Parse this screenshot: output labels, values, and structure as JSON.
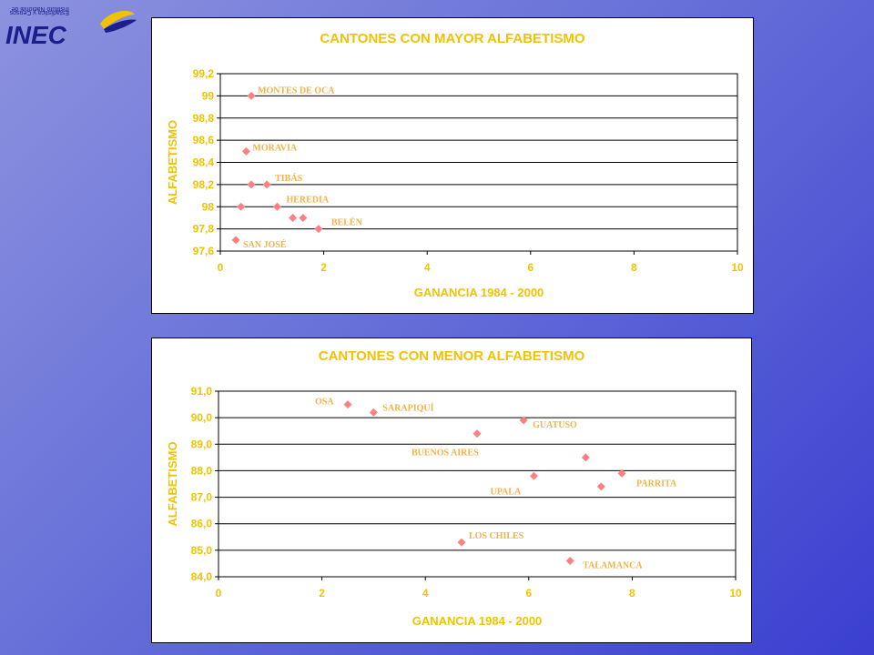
{
  "logo": {
    "text": "INEC",
    "tagline_line1": "Instituto Nacional de",
    "tagline_line2": "Estadística y Censos",
    "colors": {
      "text": "#1a1f8c",
      "accent": "#f2c200"
    }
  },
  "colors": {
    "panel_bg": "#ffffff",
    "title_text": "#f2c200",
    "marker": "#ff8080",
    "point_label": "#f2b34a",
    "grid": "#000000",
    "tick_text": "#f2c200"
  },
  "chart_data": [
    {
      "type": "scatter",
      "title": "CANTONES CON MAYOR ALFABETISMO",
      "xlabel": "GANANCIA 1984 - 2000",
      "ylabel": "ALFABETISMO",
      "xlim": [
        0,
        10
      ],
      "ylim": [
        97.6,
        99.2
      ],
      "xticks": [
        0,
        2,
        4,
        6,
        8,
        10
      ],
      "xtick_labels": [
        "0",
        "2",
        "4",
        "6",
        "8",
        "10"
      ],
      "yticks": [
        97.6,
        97.8,
        98.0,
        98.2,
        98.4,
        98.6,
        98.8,
        99.0,
        99.2
      ],
      "ytick_labels": [
        "97,6",
        "97,8",
        "98",
        "98,2",
        "98,4",
        "98,6",
        "98,8",
        "99",
        "99,2"
      ],
      "grid": "horizontal",
      "points": [
        {
          "x": 0.6,
          "y": 99.0,
          "label": "MONTES DE OCA"
        },
        {
          "x": 0.5,
          "y": 98.5,
          "label": "MORAVIA"
        },
        {
          "x": 0.6,
          "y": 98.2,
          "label": ""
        },
        {
          "x": 0.9,
          "y": 98.2,
          "label": "TIBÁS"
        },
        {
          "x": 0.4,
          "y": 98.0,
          "label": ""
        },
        {
          "x": 1.1,
          "y": 98.0,
          "label": "HEREDIA"
        },
        {
          "x": 1.4,
          "y": 97.9,
          "label": ""
        },
        {
          "x": 1.6,
          "y": 97.9,
          "label": ""
        },
        {
          "x": 1.9,
          "y": 97.8,
          "label": "BELÉN"
        },
        {
          "x": 0.3,
          "y": 97.7,
          "label": "SAN JOSÉ"
        }
      ]
    },
    {
      "type": "scatter",
      "title": "CANTONES CON MENOR ALFABETISMO",
      "xlabel": "GANANCIA 1984 - 2000",
      "ylabel": "ALFABETISMO",
      "xlim": [
        0,
        10
      ],
      "ylim": [
        84.0,
        91.0
      ],
      "xticks": [
        0,
        2,
        4,
        6,
        8,
        10
      ],
      "xtick_labels": [
        "0",
        "2",
        "4",
        "6",
        "8",
        "10"
      ],
      "yticks": [
        84,
        85,
        86,
        87,
        88,
        89,
        90,
        91
      ],
      "ytick_labels": [
        "84,0",
        "85,0",
        "86,0",
        "87,0",
        "88,0",
        "89,0",
        "90,0",
        "91,0"
      ],
      "grid": "horizontal",
      "points": [
        {
          "x": 2.5,
          "y": 90.5,
          "label": "OSA"
        },
        {
          "x": 3.0,
          "y": 90.2,
          "label": "SARAPIQUÍ"
        },
        {
          "x": 5.9,
          "y": 89.9,
          "label": "GUATUSO"
        },
        {
          "x": 5.0,
          "y": 89.4,
          "label": "BUENOS AIRES"
        },
        {
          "x": 7.1,
          "y": 88.5,
          "label": ""
        },
        {
          "x": 7.8,
          "y": 87.9,
          "label": "PARRITA"
        },
        {
          "x": 6.1,
          "y": 87.8,
          "label": "UPALA"
        },
        {
          "x": 7.4,
          "y": 87.4,
          "label": ""
        },
        {
          "x": 4.7,
          "y": 85.3,
          "label": "LOS CHILES"
        },
        {
          "x": 6.8,
          "y": 84.6,
          "label": "TALAMANCA"
        }
      ]
    }
  ]
}
